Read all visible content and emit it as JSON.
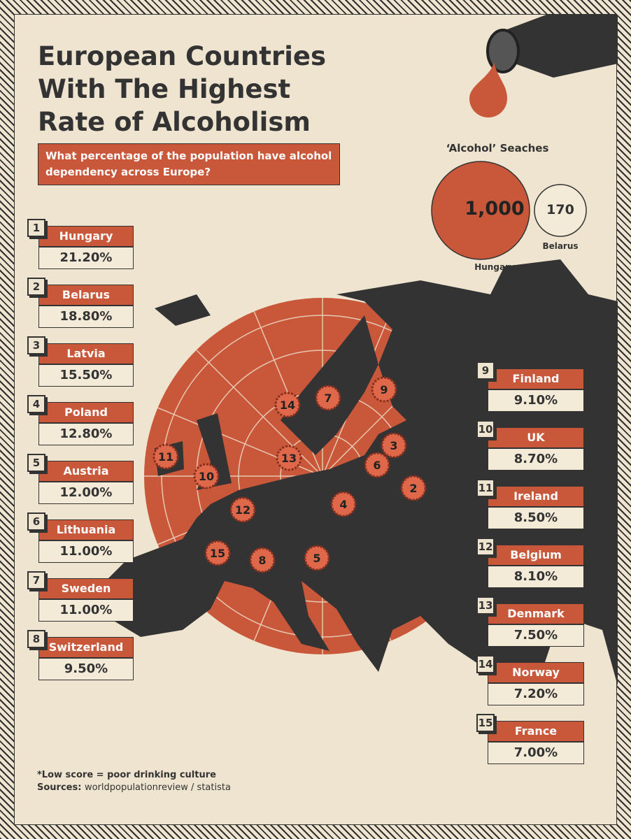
{
  "header": {
    "title": "European Countries With The Highest Rate of Alcoholism",
    "subtitle": "What percentage of the population have alcohol dependency across Europe?"
  },
  "searches": {
    "title": "‘Alcohol’ Seaches",
    "items": [
      {
        "value": "1,000",
        "label": "Hungary"
      },
      {
        "value": "170",
        "label": "Belarus"
      }
    ]
  },
  "rankings": [
    {
      "rank": "1",
      "country": "Hungary",
      "value": "21.20%"
    },
    {
      "rank": "2",
      "country": "Belarus",
      "value": "18.80%"
    },
    {
      "rank": "3",
      "country": "Latvia",
      "value": "15.50%"
    },
    {
      "rank": "4",
      "country": "Poland",
      "value": "12.80%"
    },
    {
      "rank": "5",
      "country": "Austria",
      "value": "12.00%"
    },
    {
      "rank": "6",
      "country": "Lithuania",
      "value": "11.00%"
    },
    {
      "rank": "7",
      "country": "Sweden",
      "value": "11.00%"
    },
    {
      "rank": "8",
      "country": "Switzerland",
      "value": "9.50%"
    },
    {
      "rank": "9",
      "country": "Finland",
      "value": "9.10%"
    },
    {
      "rank": "10",
      "country": "UK",
      "value": "8.70%"
    },
    {
      "rank": "11",
      "country": "Ireland",
      "value": "8.50%"
    },
    {
      "rank": "12",
      "country": "Belgium",
      "value": "8.10%"
    },
    {
      "rank": "13",
      "country": "Denmark",
      "value": "7.50%"
    },
    {
      "rank": "14",
      "country": "Norway",
      "value": "7.20%"
    },
    {
      "rank": "15",
      "country": "France",
      "value": "7.00%"
    }
  ],
  "footer": {
    "note": "*Low score = poor drinking culture",
    "sources_label": "Sources:",
    "sources": "worldpopulationreview / statista"
  }
}
